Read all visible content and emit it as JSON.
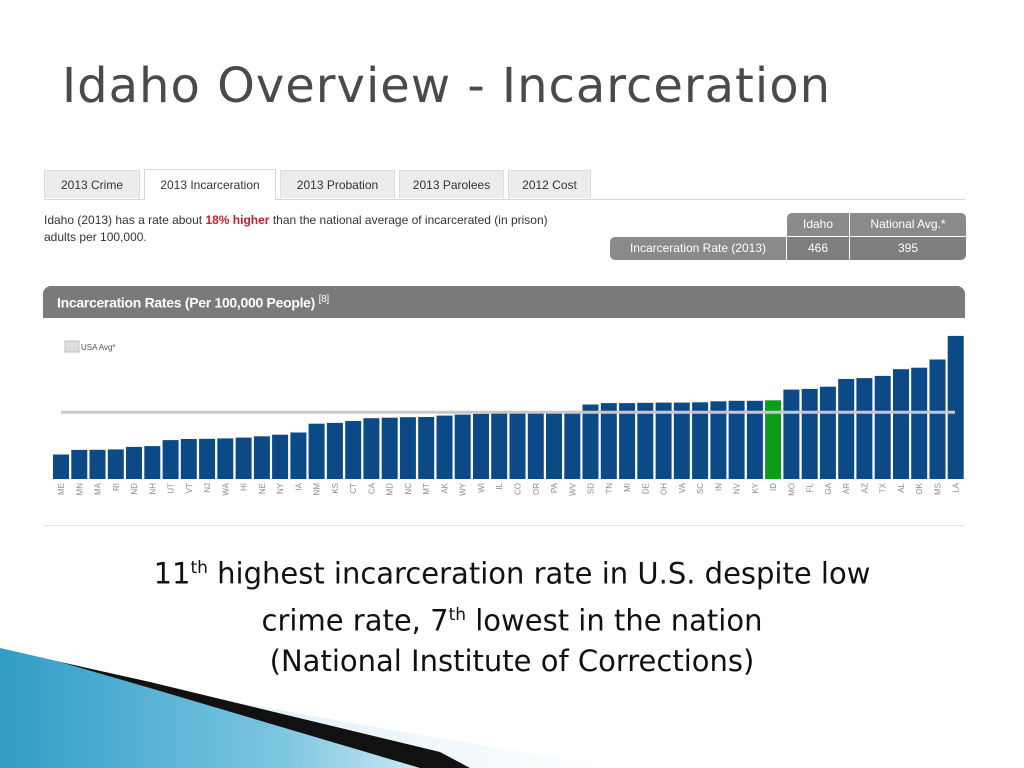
{
  "slide": {
    "title": "Idaho Overview - Incarceration"
  },
  "tabs": [
    {
      "label": "2013 Crime",
      "active": false
    },
    {
      "label": "2013 Incarceration",
      "active": true
    },
    {
      "label": "2013 Probation",
      "active": false
    },
    {
      "label": "2013 Parolees",
      "active": false
    },
    {
      "label": "2012 Cost",
      "active": false
    }
  ],
  "summary": {
    "text_before": "Idaho (2013) has a rate about ",
    "highlight": "18% higher",
    "text_after": " than the national average of incarcerated (in prison) adults per 100,000."
  },
  "rate_table": {
    "col_idaho": "Idaho",
    "col_national": "National Avg.*",
    "row_label": "Incarceration Rate (2013)",
    "idaho_value": "466",
    "national_value": "395"
  },
  "chart_header": {
    "title": "Incarceration Rates (Per 100,000 People)",
    "ref": "[8]"
  },
  "chart_data": {
    "type": "bar",
    "legend": "USA Avg*",
    "legend_position": "top-left",
    "categories": [
      "ME",
      "MN",
      "MA",
      "RI",
      "ND",
      "NH",
      "UT",
      "VT",
      "NJ",
      "WA",
      "HI",
      "NE",
      "NY",
      "IA",
      "NM",
      "KS",
      "CT",
      "CA",
      "MD",
      "NC",
      "MT",
      "AK",
      "WY",
      "WI",
      "IL",
      "CO",
      "OR",
      "PA",
      "WV",
      "SD",
      "TN",
      "MI",
      "DE",
      "OH",
      "VA",
      "SC",
      "IN",
      "NV",
      "KY",
      "ID",
      "MO",
      "FL",
      "GA",
      "AR",
      "AZ",
      "TX",
      "AL",
      "OK",
      "MS",
      "LA"
    ],
    "values": [
      145,
      172,
      173,
      175,
      190,
      195,
      230,
      237,
      238,
      240,
      245,
      253,
      262,
      275,
      327,
      332,
      343,
      360,
      363,
      366,
      367,
      375,
      381,
      386,
      389,
      397,
      398,
      399,
      403,
      441,
      449,
      449,
      451,
      452,
      452,
      454,
      460,
      463,
      463,
      466,
      529,
      533,
      546,
      592,
      597,
      610,
      650,
      659,
      707,
      847
    ],
    "highlight_category": "ID",
    "reference_line": {
      "label": "USA Avg*",
      "value": 395
    },
    "ylim": [
      0,
      870
    ],
    "grid": false,
    "colors": {
      "bar": "#0b4a87",
      "highlight": "#0f9c1a",
      "reference": "#c8c8c8"
    }
  },
  "caption": {
    "line1_num": "11",
    "line1_sup": "th",
    "line1_rest": " highest incarceration rate in U.S. despite low",
    "line2_pre": "crime rate, 7",
    "line2_sup": "th",
    "line2_rest": " lowest in the nation",
    "line3": "(National Institute of Corrections)"
  }
}
